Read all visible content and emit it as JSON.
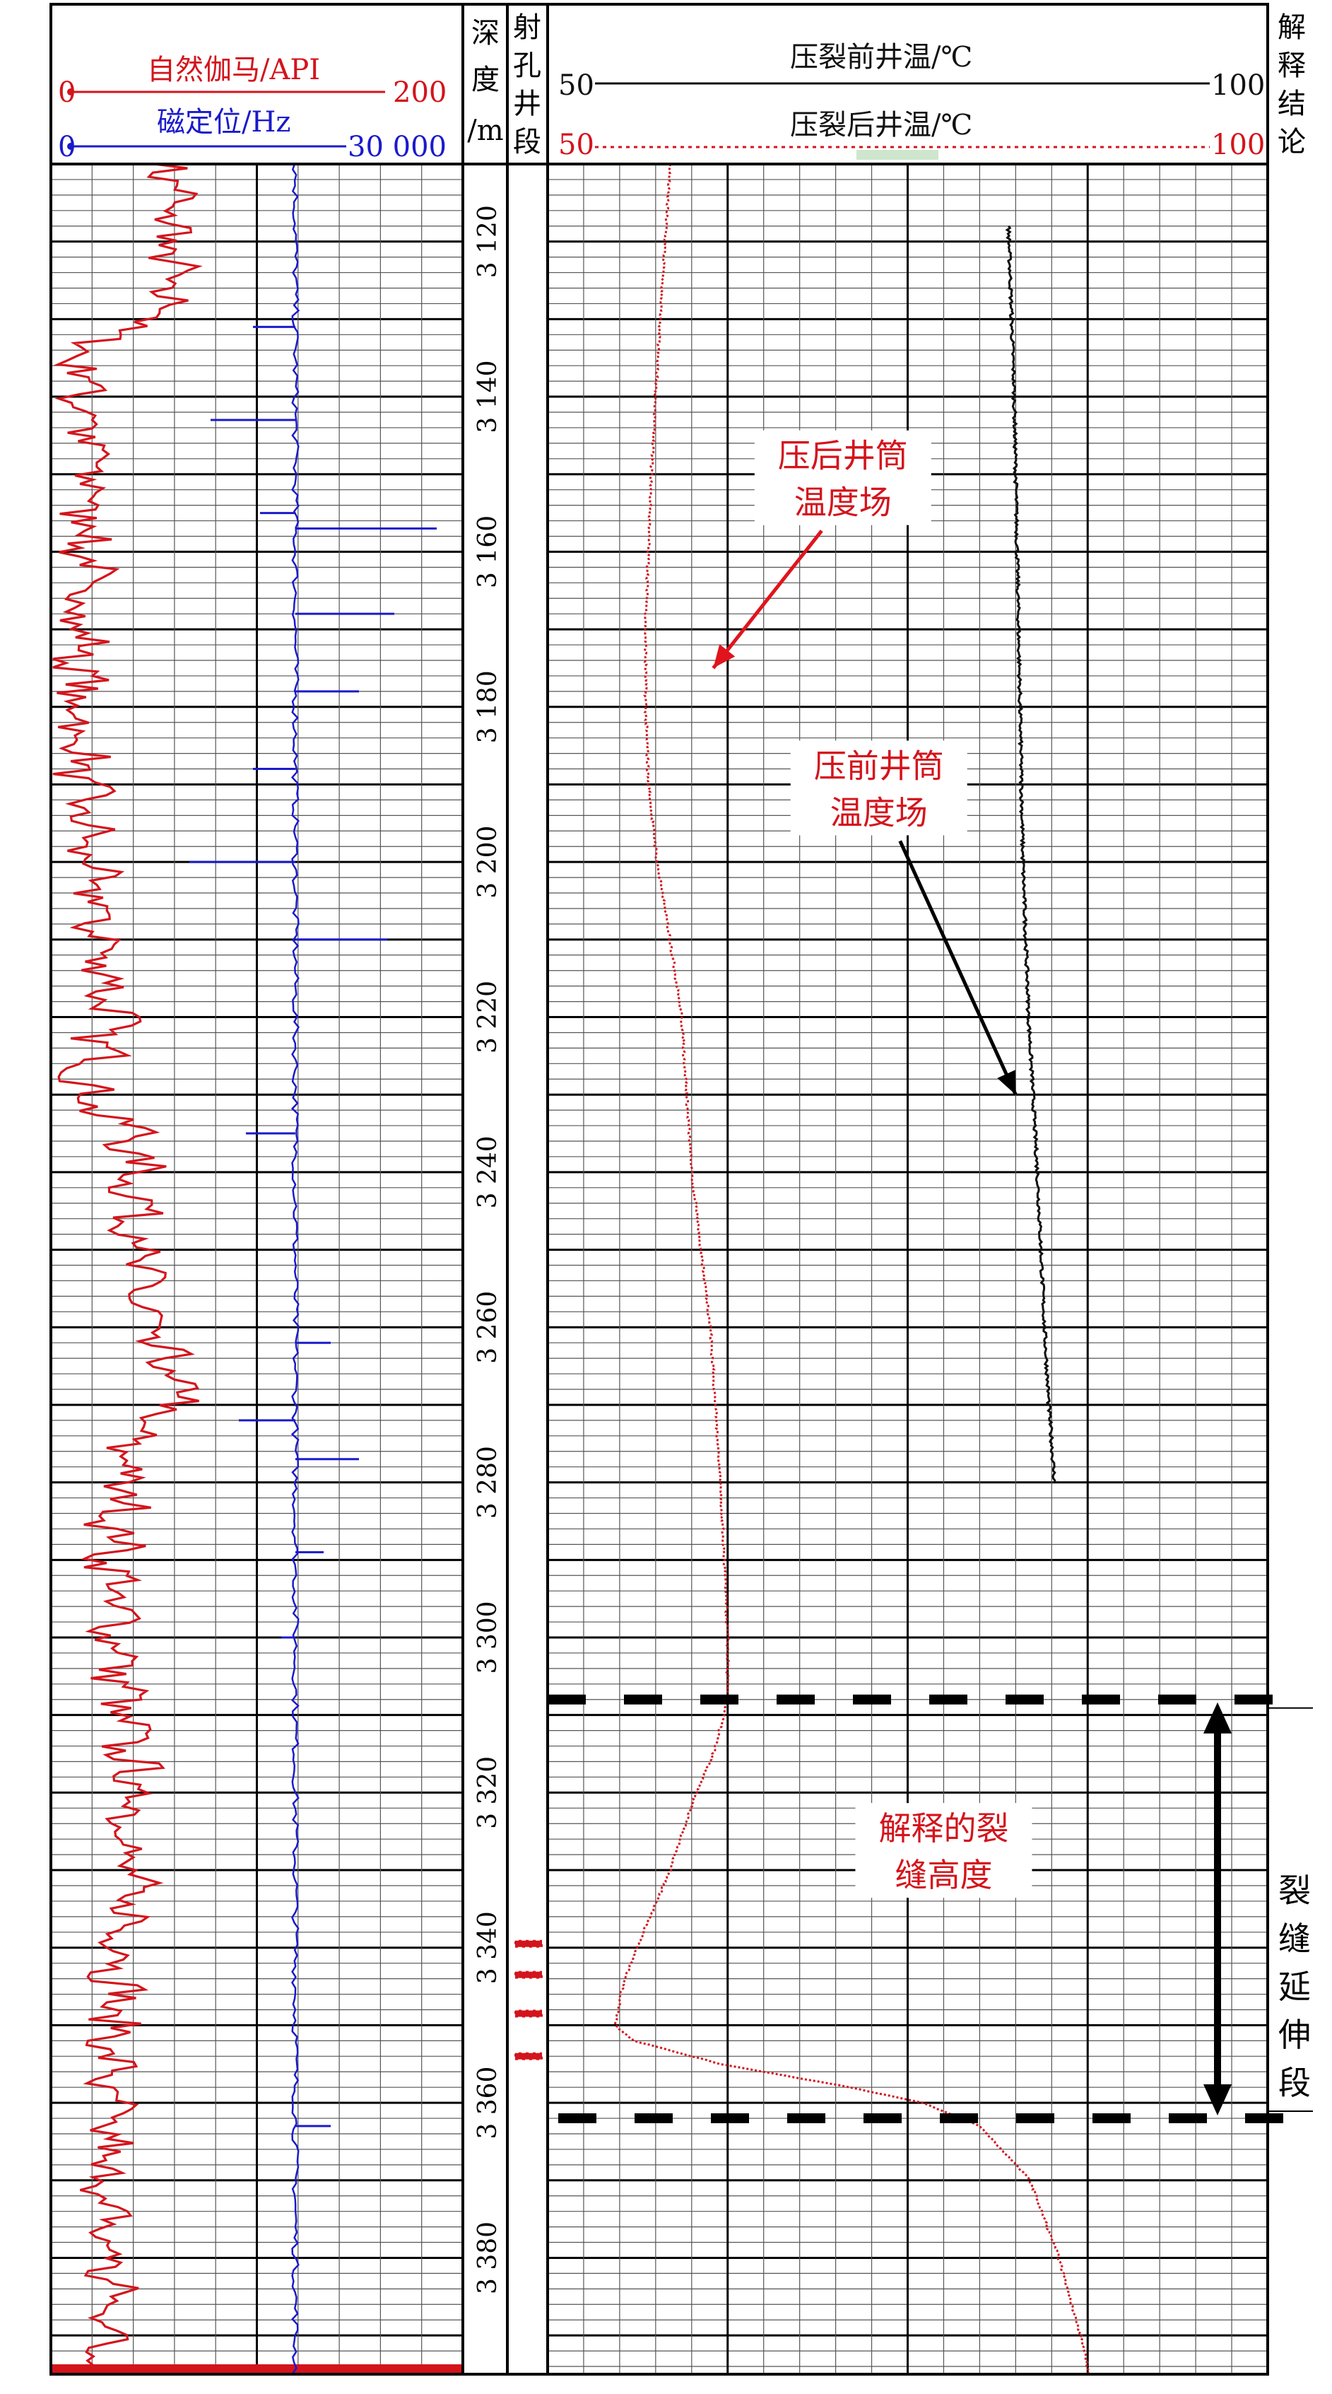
{
  "chart_data": {
    "type": "line",
    "tracks": {
      "gamma_ccl": {
        "gamma": {
          "label": "自然伽马/API",
          "min": "0",
          "max": "200",
          "color": "#d4141c"
        },
        "ccl": {
          "label": "磁定位/Hz",
          "min": "0",
          "max": "30 000",
          "color": "#1a1acc"
        }
      },
      "depth": {
        "label_chars": [
          "深",
          "度",
          "/m"
        ]
      },
      "perforation": {
        "label_chars": [
          "射",
          "孔",
          "井",
          "段"
        ]
      },
      "temperature": {
        "before": {
          "label": "压裂前井温/℃",
          "min": "50",
          "max": "100",
          "color": "#111111"
        },
        "after": {
          "label": "压裂后井温/℃",
          "min": "50",
          "max": "100",
          "color": "#d4141c"
        }
      },
      "conclusion": {
        "label_chars": [
          "解",
          "释",
          "结",
          "论"
        ],
        "zone_chars": [
          "裂",
          "缝",
          "延",
          "伸",
          "段"
        ]
      }
    },
    "depth_range": [
      3110,
      3395
    ],
    "depth_ticks": [
      "3 120",
      "3 140",
      "3 160",
      "3 180",
      "3 200",
      "3 220",
      "3 240",
      "3 260",
      "3 280",
      "3 300",
      "3 320",
      "3 340",
      "3 360",
      "3 380"
    ],
    "depth_tick_values": [
      3120,
      3140,
      3160,
      3180,
      3200,
      3220,
      3240,
      3260,
      3280,
      3300,
      3320,
      3340,
      3360,
      3380
    ],
    "perforations": [
      [
        3339.0,
        3340.0
      ],
      [
        3343.0,
        3344.0
      ],
      [
        3348.0,
        3349.0
      ],
      [
        3353.5,
        3354.5
      ]
    ],
    "series": [
      {
        "name": "压裂前井温/℃",
        "key": "before",
        "x_range": [
          50,
          100
        ],
        "depth": [
          3118,
          3140,
          3160,
          3180,
          3200,
          3220,
          3240,
          3260,
          3270,
          3280
        ],
        "values": [
          82.0,
          82.4,
          82.6,
          82.8,
          83.0,
          83.4,
          84.0,
          84.5,
          84.8,
          85.2
        ]
      },
      {
        "name": "压裂后井温/℃",
        "key": "after",
        "x_range": [
          50,
          100
        ],
        "depth": [
          3110,
          3130,
          3150,
          3170,
          3180,
          3190,
          3200,
          3210,
          3220,
          3240,
          3260,
          3280,
          3300,
          3308,
          3315,
          3320,
          3330,
          3340,
          3345,
          3350,
          3352,
          3355,
          3358,
          3360,
          3363,
          3370,
          3380,
          3390,
          3395
        ],
        "values": [
          58.5,
          57.8,
          57.2,
          56.8,
          56.8,
          57.0,
          57.6,
          58.5,
          59.3,
          60.0,
          61.3,
          62.0,
          62.5,
          62.5,
          61.5,
          60.3,
          58.5,
          56.2,
          55.2,
          54.7,
          56.0,
          62.0,
          71.0,
          76.0,
          80.0,
          83.5,
          85.5,
          87.0,
          87.6
        ]
      }
    ],
    "annotations": [
      {
        "key": "after_field",
        "lines": [
          "压后井筒",
          "温度场"
        ],
        "color": "#d4141c",
        "depth": 3150,
        "temp": 70.5,
        "arrow_to": {
          "depth": 3175,
          "temp": 61.5
        }
      },
      {
        "key": "before_field",
        "lines": [
          "压前井筒",
          "温度场"
        ],
        "color": "#d4141c",
        "depth": 3190,
        "temp": 73.0,
        "arrow_to": {
          "depth": 3230,
          "temp": 82.5
        }
      },
      {
        "key": "fracture_height",
        "lines": [
          "解释的裂",
          "缝高度"
        ],
        "color": "#d4141c",
        "depth": 3327,
        "temp": 77.5
      }
    ],
    "fracture_zone": {
      "top": 3308,
      "bottom": 3362
    }
  }
}
